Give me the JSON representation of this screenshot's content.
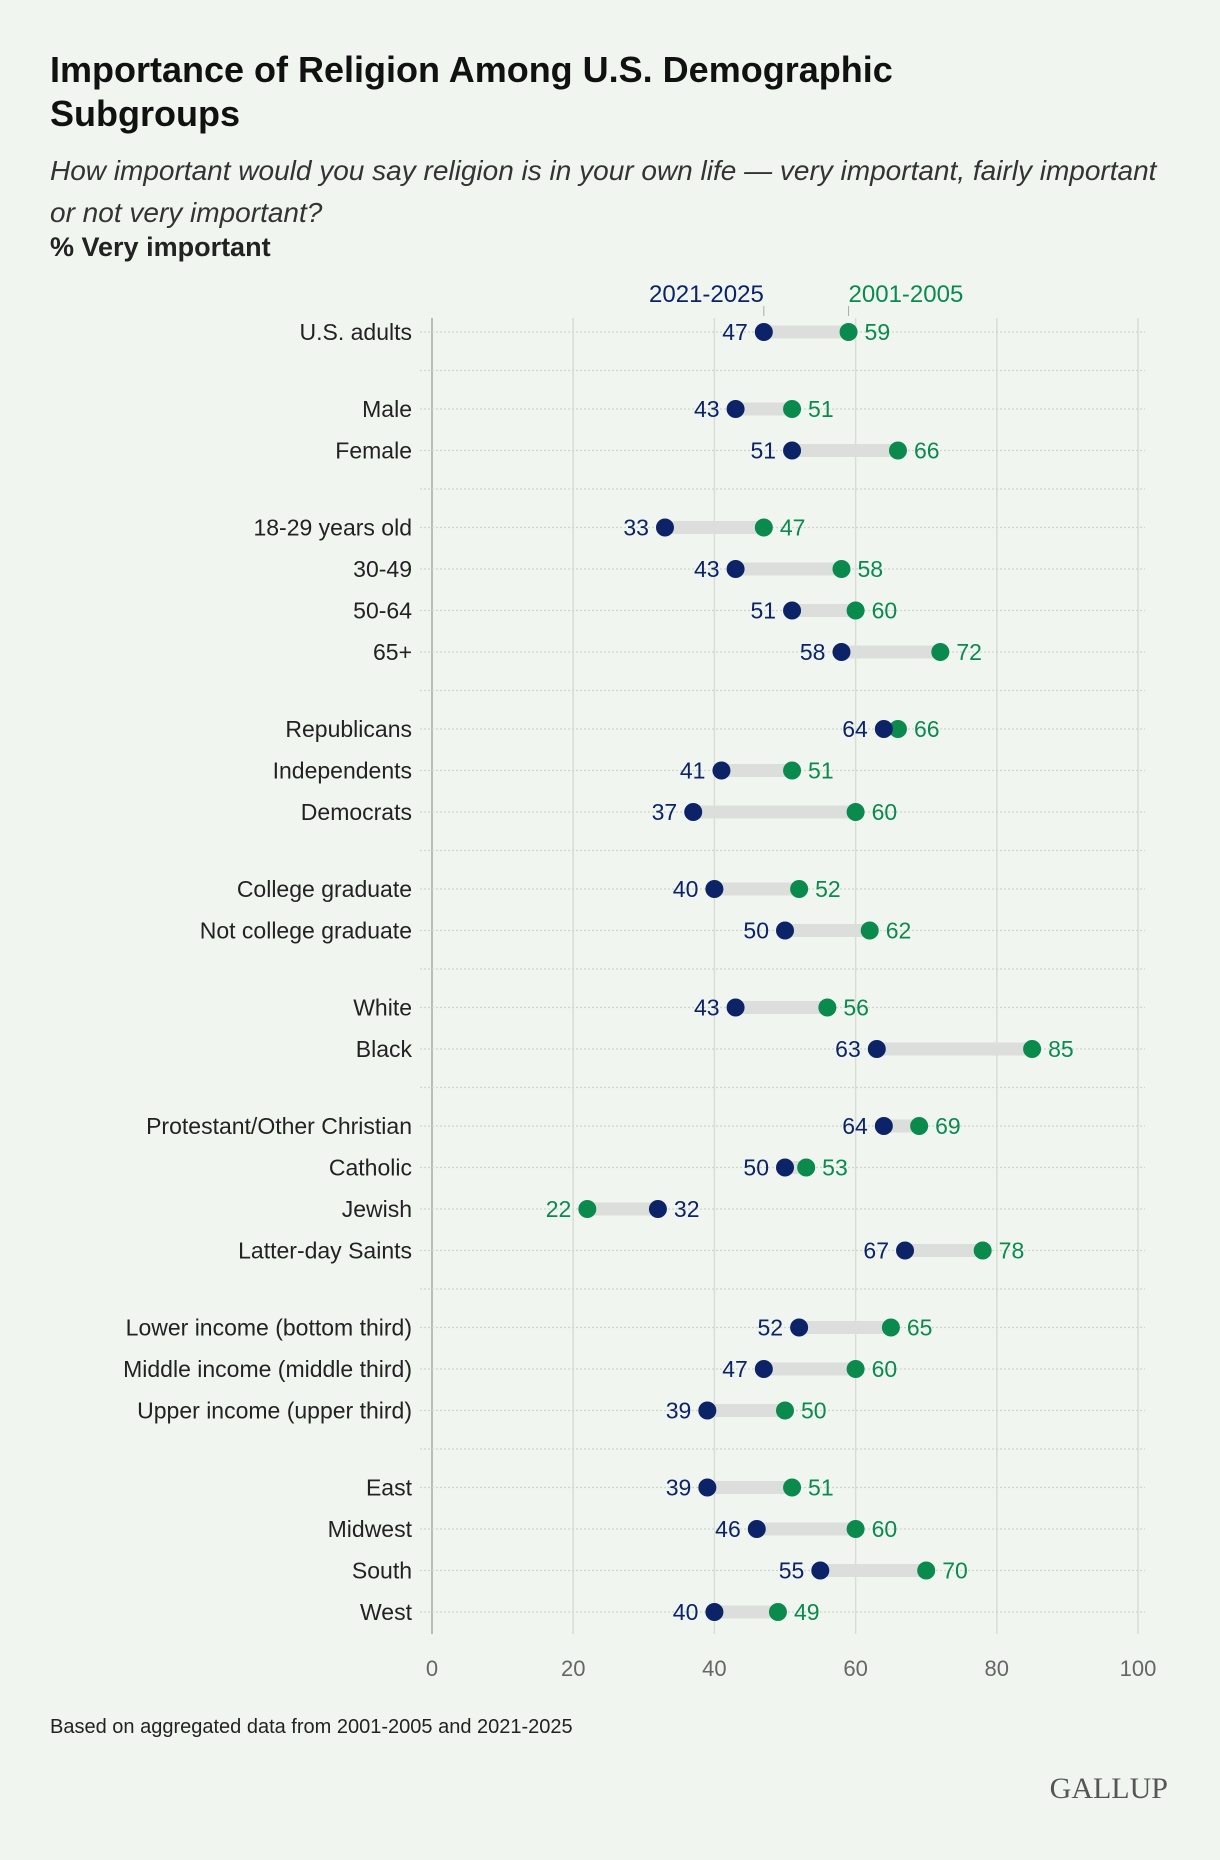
{
  "title": "Importance of Religion Among U.S. Demographic Subgroups",
  "subtitle": "How important would you say religion is in your own life — very important, fairly important or not very important?",
  "unit_label": "% Very important",
  "footnote": "Based on aggregated data from 2001-2005 and 2021-2025",
  "logo": "GALLUP",
  "colors": {
    "recent": "#0c2368",
    "earlier": "#0b8a4e",
    "background": "#f0f6ef"
  },
  "chart_data": {
    "type": "dumbbell",
    "xlim": [
      0,
      100
    ],
    "x_ticks": [
      0,
      20,
      40,
      60,
      80,
      100
    ],
    "grid": true,
    "series": [
      {
        "name": "2021-2025",
        "key": "recent"
      },
      {
        "name": "2001-2005",
        "key": "earlier"
      }
    ],
    "groups": [
      [
        {
          "label": "U.S. adults",
          "recent": 47,
          "earlier": 59
        }
      ],
      [
        {
          "label": "Male",
          "recent": 43,
          "earlier": 51
        },
        {
          "label": "Female",
          "recent": 51,
          "earlier": 66
        }
      ],
      [
        {
          "label": "18-29 years old",
          "recent": 33,
          "earlier": 47
        },
        {
          "label": "30-49",
          "recent": 43,
          "earlier": 58
        },
        {
          "label": "50-64",
          "recent": 51,
          "earlier": 60
        },
        {
          "label": "65+",
          "recent": 58,
          "earlier": 72
        }
      ],
      [
        {
          "label": "Republicans",
          "recent": 64,
          "earlier": 66
        },
        {
          "label": "Independents",
          "recent": 41,
          "earlier": 51
        },
        {
          "label": "Democrats",
          "recent": 37,
          "earlier": 60
        }
      ],
      [
        {
          "label": "College graduate",
          "recent": 40,
          "earlier": 52
        },
        {
          "label": "Not college graduate",
          "recent": 50,
          "earlier": 62
        }
      ],
      [
        {
          "label": "White",
          "recent": 43,
          "earlier": 56
        },
        {
          "label": "Black",
          "recent": 63,
          "earlier": 85
        }
      ],
      [
        {
          "label": "Protestant/Other Christian",
          "recent": 64,
          "earlier": 69
        },
        {
          "label": "Catholic",
          "recent": 50,
          "earlier": 53
        },
        {
          "label": "Jewish",
          "recent": 32,
          "earlier": 22
        },
        {
          "label": "Latter-day Saints",
          "recent": 67,
          "earlier": 78
        }
      ],
      [
        {
          "label": "Lower income (bottom third)",
          "recent": 52,
          "earlier": 65
        },
        {
          "label": "Middle income (middle third)",
          "recent": 47,
          "earlier": 60
        },
        {
          "label": "Upper income (upper third)",
          "recent": 39,
          "earlier": 50
        }
      ],
      [
        {
          "label": "East",
          "recent": 39,
          "earlier": 51
        },
        {
          "label": "Midwest",
          "recent": 46,
          "earlier": 60
        },
        {
          "label": "South",
          "recent": 55,
          "earlier": 70
        },
        {
          "label": "West",
          "recent": 40,
          "earlier": 49
        }
      ]
    ]
  }
}
